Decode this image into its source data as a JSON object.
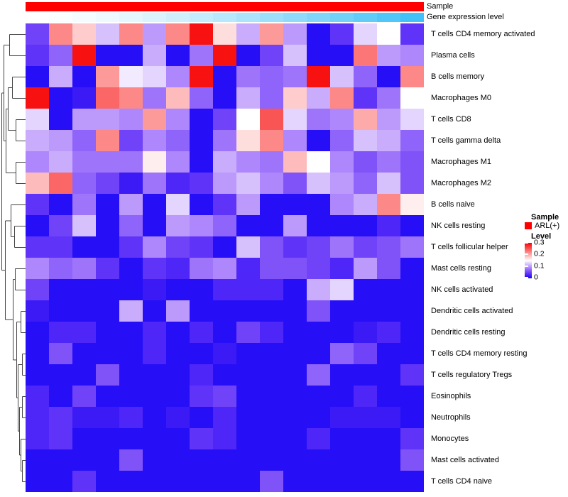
{
  "annotation_tracks": {
    "sample_label": "Sample",
    "gene_expression_label": "Gene expression level",
    "sample_color": "#FE0000",
    "gene_expression_colors": [
      "#FFFFFF",
      "#FBFEFF",
      "#F5FCFF",
      "#EDF9FE",
      "#E4F6FE",
      "#DAF3FD",
      "#CFEFFD",
      "#C3ECFC",
      "#B7E8FC",
      "#AAE3FB",
      "#9DDFFB",
      "#8FDAFA",
      "#80D6FA",
      "#71D1F9",
      "#61CCF8",
      "#51C6F8",
      "#41C1F7"
    ]
  },
  "legend": {
    "sample_title": "Sample",
    "sample_items": [
      {
        "label": "ARL(+)",
        "color": "#FE0000"
      }
    ],
    "level_title": "Level",
    "level_ticks": [
      "0.3",
      "0.2",
      "0.1",
      "0"
    ]
  },
  "chart_data": {
    "type": "heatmap",
    "title": "",
    "rows": [
      "T cells CD4 memory activated",
      "Plasma cells",
      "B cells memory",
      "Macrophages M0",
      "T cells CD8",
      "T cells gamma delta",
      "Macrophages M1",
      "Macrophages M2",
      "B cells naive",
      "NK cells resting",
      "T cells follicular helper",
      "Mast cells resting",
      "NK cells activated",
      "Dendritic cells activated",
      "Dendritic cells resting",
      "T cells CD4 memory resting",
      "T cells regulatory  Tregs",
      "Eosinophils",
      "Neutrophils",
      "Monocytes",
      "Mast cells activated",
      "T cells CD4 naive"
    ],
    "n_columns": 17,
    "column_labels_visible": false,
    "color_scale": {
      "min": 0,
      "mid": 0.15,
      "max": 0.3,
      "low": "#0A08F5",
      "mid_color": "#FFFFFF",
      "high": "#FA0000"
    },
    "values": [
      [
        0.05,
        0.22,
        0.18,
        0.12,
        0.22,
        0.1,
        0.22,
        0.29,
        0.17,
        0.11,
        0.21,
        0.1,
        0.01,
        0.04,
        0.13,
        0.15,
        0.04
      ],
      [
        0.04,
        0.07,
        0.29,
        0.01,
        0.01,
        0.11,
        0.01,
        0.08,
        0.29,
        0.01,
        0.05,
        0.12,
        0.01,
        0.01,
        0.23,
        0.1,
        0.09
      ],
      [
        0.01,
        0.11,
        0.01,
        0.21,
        0.14,
        0.13,
        0.09,
        0.29,
        0.01,
        0.08,
        0.07,
        0.08,
        0.29,
        0.12,
        0.07,
        0.01,
        0.22
      ],
      [
        0.29,
        0.01,
        0.02,
        0.24,
        0.22,
        0.08,
        0.19,
        0.07,
        0.01,
        0.11,
        0.07,
        0.18,
        0.11,
        0.22,
        0.04,
        0.08,
        0.15
      ],
      [
        0.13,
        0.01,
        0.1,
        0.1,
        0.09,
        0.21,
        0.09,
        0.01,
        0.05,
        0.15,
        0.25,
        0.13,
        0.08,
        0.09,
        0.2,
        0.1,
        0.13
      ],
      [
        0.11,
        0.1,
        0.07,
        0.22,
        0.05,
        0.09,
        0.07,
        0.01,
        0.08,
        0.17,
        0.22,
        0.09,
        0.01,
        0.07,
        0.12,
        0.11,
        0.07
      ],
      [
        0.09,
        0.11,
        0.08,
        0.08,
        0.08,
        0.16,
        0.09,
        0.01,
        0.11,
        0.09,
        0.08,
        0.19,
        0.15,
        0.09,
        0.06,
        0.08,
        0.06
      ],
      [
        0.19,
        0.24,
        0.07,
        0.05,
        0.02,
        0.08,
        0.03,
        0.04,
        0.1,
        0.12,
        0.09,
        0.06,
        0.12,
        0.1,
        0.07,
        0.12,
        0.06
      ],
      [
        0.04,
        0.01,
        0.08,
        0.01,
        0.1,
        0.01,
        0.13,
        0.01,
        0.04,
        0.1,
        0.01,
        0.01,
        0.01,
        0.09,
        0.11,
        0.22,
        0.16
      ],
      [
        0.01,
        0.05,
        0.12,
        0.01,
        0.07,
        0.01,
        0.1,
        0.09,
        0.07,
        0.01,
        0.01,
        0.1,
        0.01,
        0.01,
        0.01,
        0.03,
        0.01
      ],
      [
        0.04,
        0.04,
        0.01,
        0.01,
        0.04,
        0.09,
        0.05,
        0.04,
        0.01,
        0.12,
        0.06,
        0.04,
        0.05,
        0.08,
        0.05,
        0.06,
        0.08
      ],
      [
        0.09,
        0.07,
        0.08,
        0.04,
        0.01,
        0.04,
        0.03,
        0.08,
        0.09,
        0.03,
        0.06,
        0.06,
        0.05,
        0.03,
        0.1,
        0.06,
        0.01
      ],
      [
        0.05,
        0.01,
        0.01,
        0.01,
        0.01,
        0.02,
        0.01,
        0.01,
        0.03,
        0.03,
        0.03,
        0.01,
        0.11,
        0.13,
        0.01,
        0.01,
        0.01
      ],
      [
        0.02,
        0.01,
        0.01,
        0.01,
        0.11,
        0.01,
        0.1,
        0.01,
        0.01,
        0.01,
        0.01,
        0.01,
        0.06,
        0.01,
        0.01,
        0.01,
        0.01
      ],
      [
        0.01,
        0.03,
        0.03,
        0.01,
        0.01,
        0.03,
        0.01,
        0.03,
        0.01,
        0.05,
        0.03,
        0.01,
        0.01,
        0.01,
        0.02,
        0.03,
        0.01
      ],
      [
        0.01,
        0.06,
        0.01,
        0.01,
        0.01,
        0.03,
        0.01,
        0.01,
        0.02,
        0.01,
        0.01,
        0.01,
        0.01,
        0.07,
        0.05,
        0.01,
        0.01
      ],
      [
        0.01,
        0.01,
        0.01,
        0.06,
        0.01,
        0.01,
        0.01,
        0.03,
        0.01,
        0.01,
        0.01,
        0.01,
        0.07,
        0.01,
        0.01,
        0.01,
        0.04
      ],
      [
        0.03,
        0.01,
        0.05,
        0.01,
        0.01,
        0.01,
        0.01,
        0.04,
        0.05,
        0.01,
        0.01,
        0.01,
        0.01,
        0.01,
        0.03,
        0.01,
        0.01
      ],
      [
        0.03,
        0.04,
        0.02,
        0.02,
        0.03,
        0.01,
        0.02,
        0.01,
        0.03,
        0.01,
        0.01,
        0.01,
        0.01,
        0.02,
        0.02,
        0.02,
        0.01
      ],
      [
        0.03,
        0.04,
        0.01,
        0.01,
        0.01,
        0.01,
        0.01,
        0.04,
        0.03,
        0.01,
        0.01,
        0.01,
        0.03,
        0.01,
        0.01,
        0.01,
        0.04
      ],
      [
        0.01,
        0.01,
        0.01,
        0.01,
        0.06,
        0.01,
        0.01,
        0.01,
        0.01,
        0.01,
        0.01,
        0.01,
        0.01,
        0.01,
        0.01,
        0.01,
        0.06
      ],
      [
        0.01,
        0.01,
        0.04,
        0.01,
        0.01,
        0.01,
        0.01,
        0.01,
        0.01,
        0.01,
        0.06,
        0.01,
        0.01,
        0.01,
        0.01,
        0.01,
        0.01
      ]
    ],
    "dendrogram": {
      "x": 2,
      "children": [
        {
          "x": 5,
          "children": [
            {
              "x": 13,
              "children": [
                {
                  "leaf": 1
                },
                {
                  "leaf": 2
                }
              ]
            },
            {
              "x": 8,
              "children": [
                {
                  "x": 11,
                  "children": [
                    {
                      "x": 17,
                      "children": [
                        {
                          "leaf": 3
                        },
                        {
                          "leaf": 4
                        }
                      ]
                    },
                    {
                      "x": 22,
                      "children": [
                        {
                          "leaf": 5
                        },
                        {
                          "leaf": 6
                        }
                      ]
                    }
                  ]
                },
                {
                  "x": 22,
                  "children": [
                    {
                      "leaf": 7
                    },
                    {
                      "leaf": 8
                    }
                  ]
                }
              ]
            }
          ]
        },
        {
          "x": 7,
          "children": [
            {
              "x": 15,
              "children": [
                {
                  "leaf": 9
                },
                {
                  "x": 20,
                  "children": [
                    {
                      "leaf": 10
                    },
                    {
                      "leaf": 11
                    }
                  ]
                }
              ]
            },
            {
              "x": 18,
              "children": [
                {
                  "x": 21,
                  "children": [
                    {
                      "leaf": 12
                    },
                    {
                      "leaf": 13
                    }
                  ]
                },
                {
                  "x": 23,
                  "children": [
                    {
                      "x": 29,
                      "children": [
                        {
                          "leaf": 14
                        },
                        {
                          "leaf": 15
                        }
                      ]
                    },
                    {
                      "x": 25,
                      "children": [
                        {
                          "x": 31,
                          "children": [
                            {
                              "leaf": 16
                            },
                            {
                              "leaf": 17
                            }
                          ]
                        },
                        {
                          "x": 27,
                          "children": [
                            {
                              "x": 31,
                              "children": [
                                {
                                  "leaf": 18
                                },
                                {
                                  "leaf": 19
                                }
                              ]
                            },
                            {
                              "x": 29,
                              "children": [
                                {
                                  "leaf": 20
                                },
                                {
                                  "x": 31,
                                  "children": [
                                    {
                                      "leaf": 21
                                    },
                                    {
                                      "leaf": 22
                                    }
                                  ]
                                }
                              ]
                            }
                          ]
                        }
                      ]
                    }
                  ]
                }
              ]
            }
          ]
        }
      ]
    }
  }
}
